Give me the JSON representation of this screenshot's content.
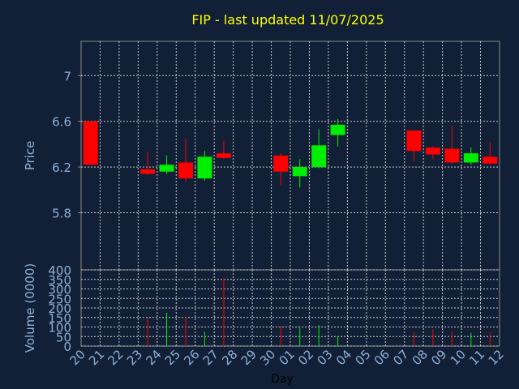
{
  "chart_data": {
    "type": "candlestick",
    "title": "FIP - last updated 11/07/2025",
    "xlabel": "Day",
    "price_axis": {
      "label": "Price",
      "ylim": [
        5.3,
        7.3
      ],
      "ticks": [
        "5.8",
        "6.2",
        "6.6",
        "7"
      ]
    },
    "volume_axis": {
      "label": "Volume (0000)",
      "ylim": [
        0,
        400
      ],
      "ticks": [
        "0",
        "50",
        "100",
        "150",
        "200",
        "250",
        "300",
        "350",
        "400"
      ]
    },
    "x_tick_labels": [
      "20",
      "21",
      "22",
      "23",
      "24",
      "25",
      "26",
      "27",
      "28",
      "29",
      "30",
      "01",
      "02",
      "03",
      "04",
      "05",
      "06",
      "07",
      "08",
      "09",
      "10",
      "11",
      "12"
    ],
    "grid": true,
    "colors": {
      "up": "#00ee00",
      "down": "#ff0000",
      "background": "#112036",
      "text": "#ffff00",
      "axis_text": "#8fb0d8",
      "grid": "#c8c8c8"
    },
    "candles": [
      {
        "x": "20",
        "open": 6.6,
        "high": 6.6,
        "low": 6.22,
        "close": 6.22,
        "volume": 0
      },
      {
        "x": "23",
        "open": 6.18,
        "high": 6.33,
        "low": 6.13,
        "close": 6.14,
        "volume": 145
      },
      {
        "x": "24",
        "open": 6.16,
        "high": 6.3,
        "low": 6.14,
        "close": 6.22,
        "volume": 175
      },
      {
        "x": "25",
        "open": 6.24,
        "high": 6.45,
        "low": 6.07,
        "close": 6.1,
        "volume": 155
      },
      {
        "x": "26",
        "open": 6.1,
        "high": 6.34,
        "low": 6.08,
        "close": 6.29,
        "volume": 75
      },
      {
        "x": "27",
        "open": 6.32,
        "high": 6.43,
        "low": 6.27,
        "close": 6.28,
        "volume": 355
      },
      {
        "x": "30",
        "open": 6.3,
        "high": 6.32,
        "low": 6.04,
        "close": 6.16,
        "volume": 105
      },
      {
        "x": "01",
        "open": 6.12,
        "high": 6.27,
        "low": 6.02,
        "close": 6.2,
        "volume": 95
      },
      {
        "x": "02",
        "open": 6.2,
        "high": 6.53,
        "low": 6.19,
        "close": 6.39,
        "volume": 110
      },
      {
        "x": "03",
        "open": 6.48,
        "high": 6.62,
        "low": 6.38,
        "close": 6.57,
        "volume": 50
      },
      {
        "x": "07",
        "open": 6.52,
        "high": 6.52,
        "low": 6.25,
        "close": 6.34,
        "volume": 75
      },
      {
        "x": "08",
        "open": 6.37,
        "high": 6.38,
        "low": 6.27,
        "close": 6.31,
        "volume": 90
      },
      {
        "x": "09",
        "open": 6.36,
        "high": 6.56,
        "low": 6.23,
        "close": 6.24,
        "volume": 75
      },
      {
        "x": "10",
        "open": 6.24,
        "high": 6.37,
        "low": 6.22,
        "close": 6.32,
        "volume": 70
      },
      {
        "x": "11",
        "open": 6.29,
        "high": 6.42,
        "low": 6.22,
        "close": 6.23,
        "volume": 70
      }
    ]
  }
}
